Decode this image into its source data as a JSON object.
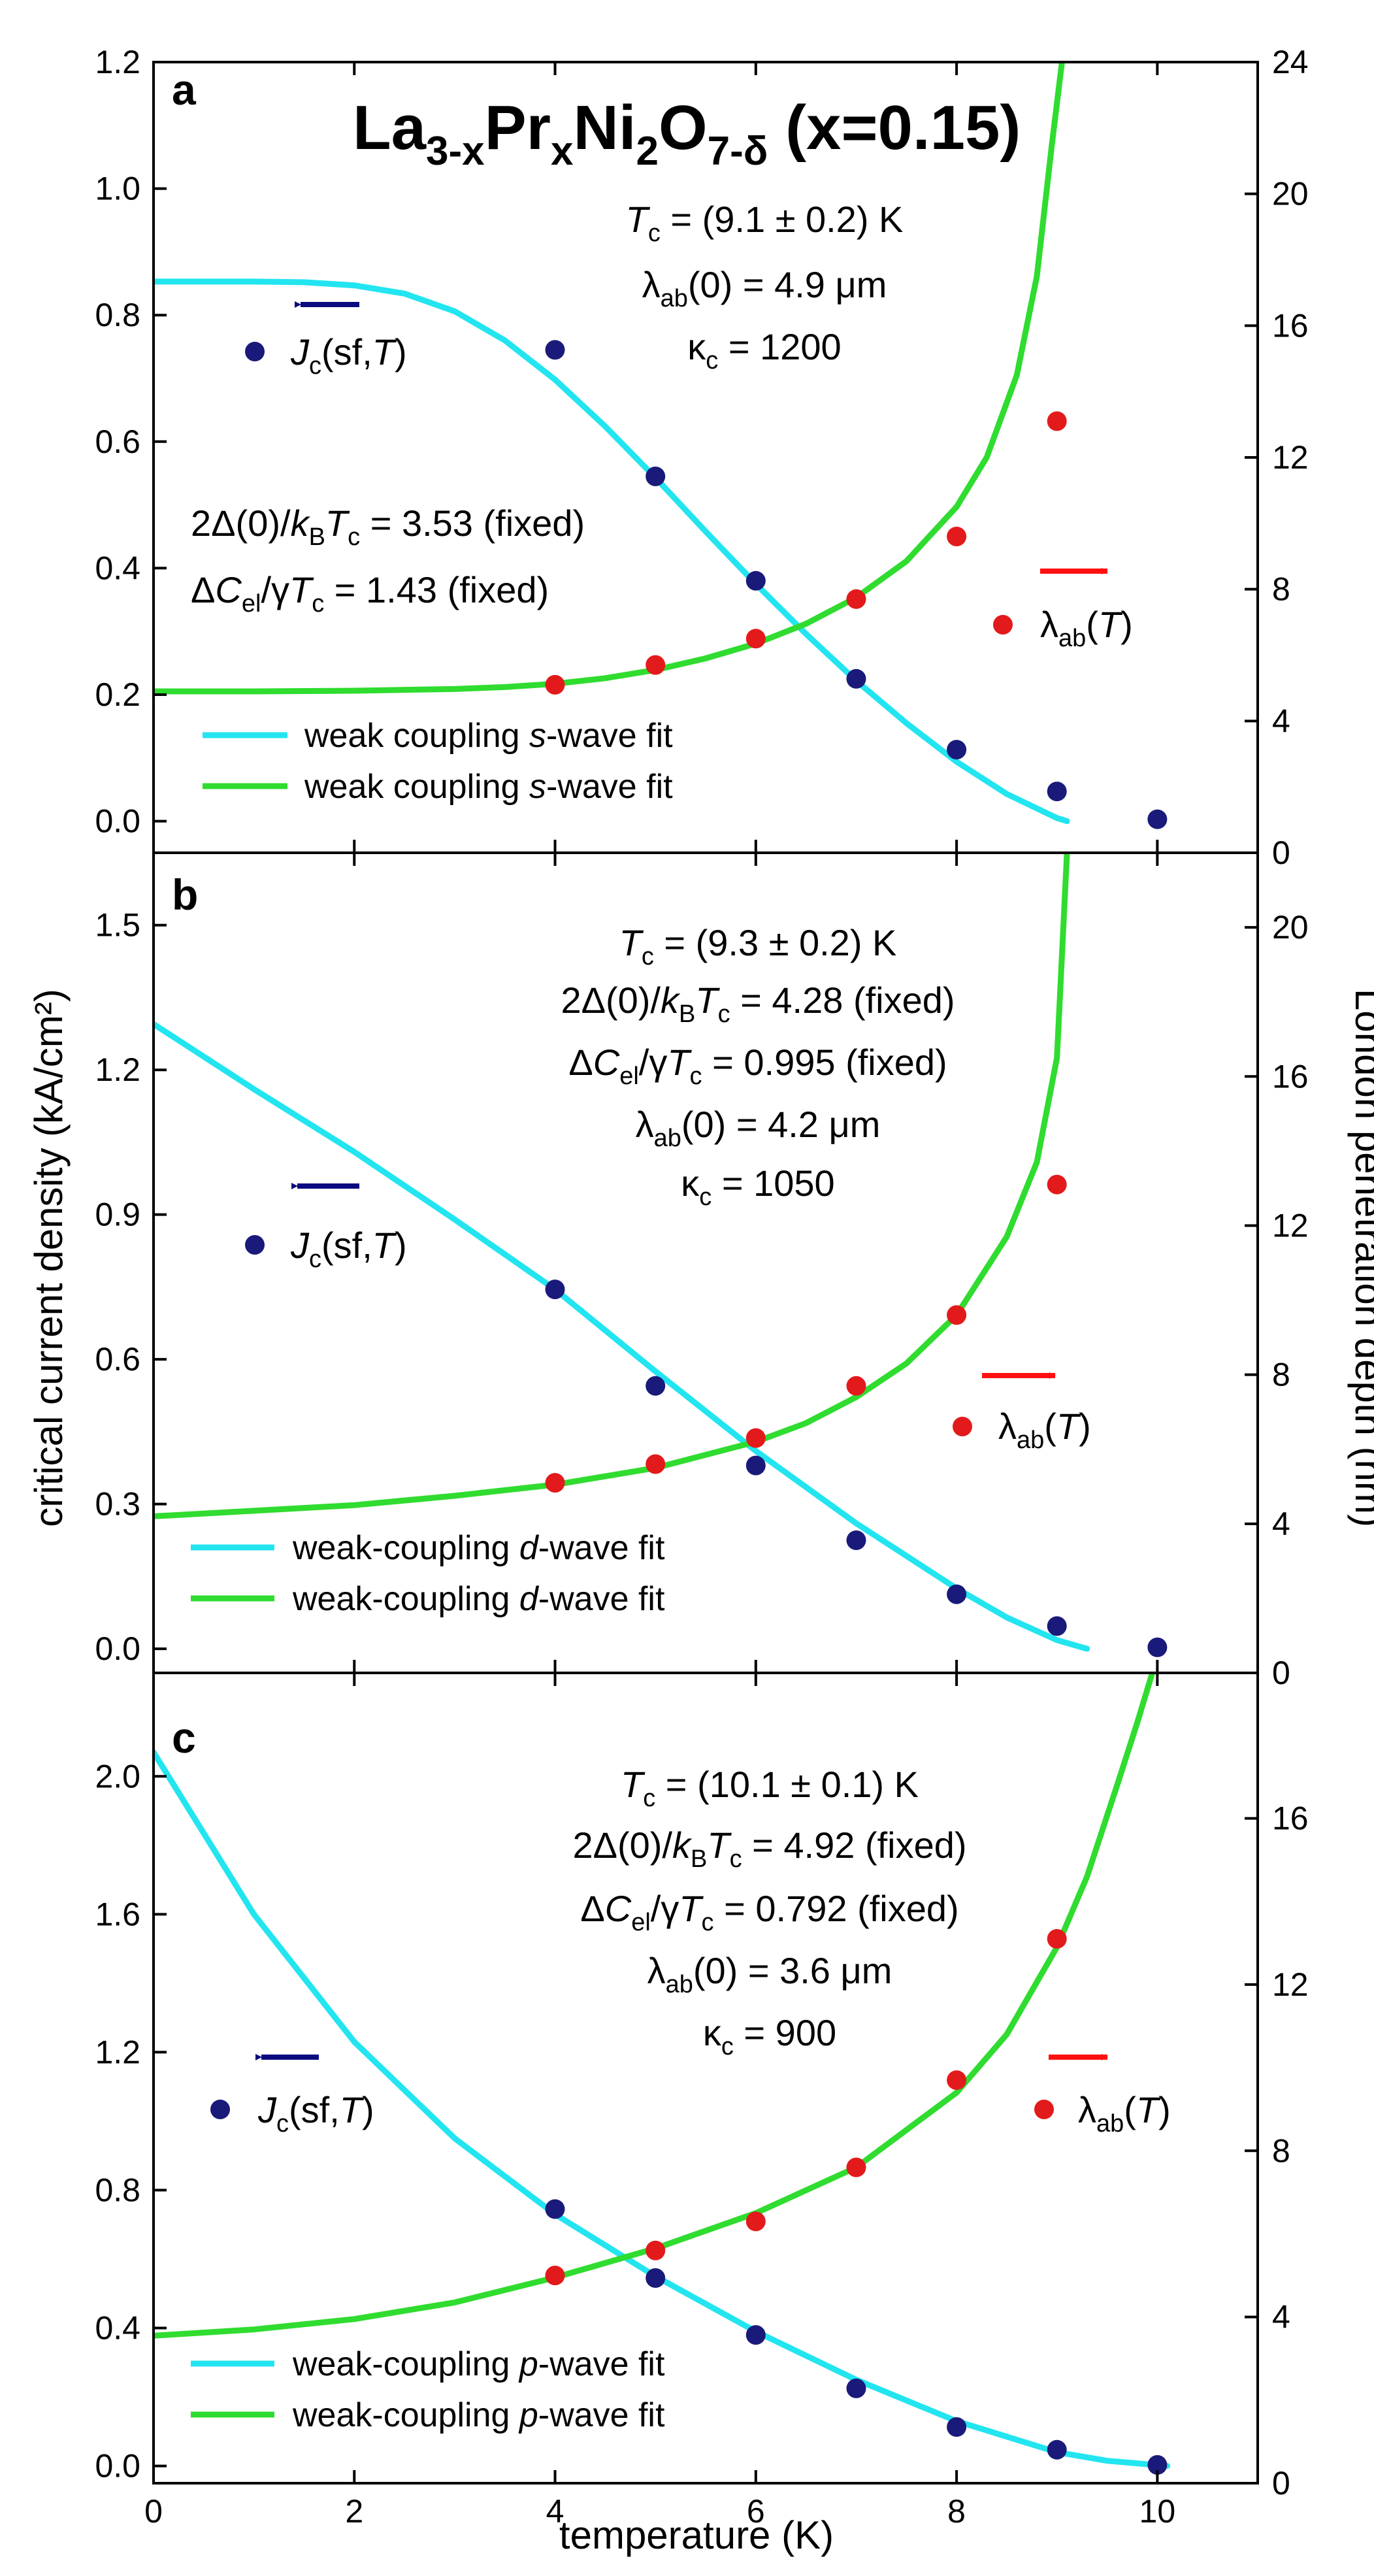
{
  "figure": {
    "title_main": "La",
    "title_sub1": "3-x",
    "title_pr": "Pr",
    "title_sub2": "x",
    "title_ni": "Ni",
    "title_sub3": "2",
    "title_o": "O",
    "title_sub4": "7-δ",
    "title_tail": " (x=0.15)",
    "xlabel": "temperature (K)",
    "ylabel_left": "critical current density (kA/cm²)",
    "ylabel_right": "London penetration depth (nm)",
    "x_ticks": [
      "0",
      "2",
      "4",
      "6",
      "8",
      "10"
    ]
  },
  "panels": [
    {
      "letter": "a",
      "annotations": [
        "T_c = (9.1 ± 0.2) K",
        "λ_ab(0) = 4.9 μm",
        "κ_c = 1200",
        "2Δ(0)/k_B T_c = 3.53 (fixed)",
        "ΔC_el/γT_c = 1.43 (fixed)"
      ],
      "a1": {
        "pre": "T",
        "sub": "c",
        "post": " = (9.1 ± 0.2) K"
      },
      "a2": {
        "pre": "λ",
        "sub": "ab",
        "post": "(0) = 4.9 μm"
      },
      "a3": {
        "pre": "κ",
        "sub": "c",
        "post": " = 1200"
      },
      "a4": {
        "p1": "2Δ(0)/",
        "i1": "k",
        "s1": "B",
        "i2": "T",
        "s2": "c",
        "p2": " = 3.53 (fixed)"
      },
      "a5": {
        "p1": "Δ",
        "i1": "C",
        "s1": "el",
        "p2": "/γ",
        "i2": "T",
        "s2": "c",
        "p3": " = 1.43 (fixed)"
      },
      "jc_label": {
        "i1": "J",
        "s1": "c",
        "p1": "(sf,",
        "i2": "T",
        "p2": ")"
      },
      "lambda_label": {
        "p1": "λ",
        "s1": "ab",
        "p2": "(",
        "i1": "T",
        "p3": ")"
      },
      "legend": [
        {
          "pre": "weak coupling ",
          "ital": "s",
          "post": "-wave fit"
        },
        {
          "pre": "weak coupling ",
          "ital": "s",
          "post": "-wave fit"
        }
      ],
      "left_ticks": [
        "0.0",
        "0.2",
        "0.4",
        "0.6",
        "0.8",
        "1.0",
        "1.2"
      ],
      "right_ticks": [
        "0",
        "4",
        "8",
        "12",
        "16",
        "20",
        "24"
      ]
    },
    {
      "letter": "b",
      "annotations": [
        "T_c = (9.3 ± 0.2) K",
        "2Δ(0)/k_B T_c = 4.28 (fixed)",
        "ΔC_el/γT_c = 0.995 (fixed)",
        "λ_ab(0) = 4.2 μm",
        "κ_c = 1050"
      ],
      "a1": {
        "pre": "T",
        "sub": "c",
        "post": " = (9.3 ± 0.2) K"
      },
      "a2": {
        "p1": "2Δ(0)/",
        "i1": "k",
        "s1": "B",
        "i2": "T",
        "s2": "c",
        "p2": " = 4.28 (fixed)"
      },
      "a3": {
        "p1": "Δ",
        "i1": "C",
        "s1": "el",
        "p2": "/γ",
        "i2": "T",
        "s2": "c",
        "p3": " = 0.995 (fixed)"
      },
      "a4": {
        "pre": "λ",
        "sub": "ab",
        "post": "(0) = 4.2 μm"
      },
      "a5": {
        "pre": "κ",
        "sub": "c",
        "post": " = 1050"
      },
      "jc_label": {
        "i1": "J",
        "s1": "c",
        "p1": "(sf,",
        "i2": "T",
        "p2": ")"
      },
      "lambda_label": {
        "p1": "λ",
        "s1": "ab",
        "p2": "(",
        "i1": "T",
        "p3": ")"
      },
      "legend": [
        {
          "pre": "weak-coupling ",
          "ital": "d",
          "post": "-wave fit"
        },
        {
          "pre": "weak-coupling ",
          "ital": "d",
          "post": "-wave fit"
        }
      ],
      "left_ticks": [
        "0.0",
        "0.3",
        "0.6",
        "0.9",
        "1.2",
        "1.5"
      ],
      "right_ticks": [
        "0",
        "4",
        "8",
        "12",
        "16",
        "20"
      ]
    },
    {
      "letter": "c",
      "annotations": [
        "T_c = (10.1 ± 0.1) K",
        "2Δ(0)/k_B T_c = 4.92 (fixed)",
        "ΔC_el/γT_c = 0.792 (fixed)",
        "λ_ab(0) = 3.6 μm",
        "κ_c = 900"
      ],
      "a1": {
        "pre": "T",
        "sub": "c",
        "post": " = (10.1 ± 0.1) K"
      },
      "a2": {
        "p1": "2Δ(0)/",
        "i1": "k",
        "s1": "B",
        "i2": "T",
        "s2": "c",
        "p2": " = 4.92 (fixed)"
      },
      "a3": {
        "p1": "Δ",
        "i1": "C",
        "s1": "el",
        "p2": "/γ",
        "i2": "T",
        "s2": "c",
        "p3": " = 0.792 (fixed)"
      },
      "a4": {
        "pre": "λ",
        "sub": "ab",
        "post": "(0) = 3.6 μm"
      },
      "a5": {
        "pre": "κ",
        "sub": "c",
        "post": " = 900"
      },
      "jc_label": {
        "i1": "J",
        "s1": "c",
        "p1": "(sf,",
        "i2": "T",
        "p2": ")"
      },
      "lambda_label": {
        "p1": "λ",
        "s1": "ab",
        "p2": "(",
        "i1": "T",
        "p3": ")"
      },
      "legend": [
        {
          "pre": "weak-coupling ",
          "ital": "p",
          "post": "-wave fit"
        },
        {
          "pre": "weak-coupling ",
          "ital": "p",
          "post": "-wave fit"
        }
      ],
      "left_ticks": [
        "0.0",
        "0.4",
        "0.8",
        "1.2",
        "1.6",
        "2.0"
      ],
      "right_ticks": [
        "0",
        "4",
        "8",
        "12",
        "16"
      ]
    }
  ],
  "colors": {
    "jc_points": "#1a1a7a",
    "lambda_points": "#e31a1c",
    "jc_fit": "#22e5f0",
    "lambda_fit": "#2fdc2f",
    "jc_arrow": "#0b0b80",
    "lambda_arrow": "#ff1010"
  },
  "chart_data": [
    {
      "type": "scatter",
      "title": "a",
      "xlabel": "temperature (K)",
      "ylabel": "critical current density (kA/cm²)",
      "y2label": "London penetration depth (nm)",
      "xlim": [
        0,
        11
      ],
      "ylim": [
        -0.05,
        1.2
      ],
      "y2lim": [
        0,
        24
      ],
      "series": [
        {
          "name": "J_c(sf,T)",
          "axis": "left",
          "x": [
            4,
            5,
            6,
            7,
            8,
            9,
            10
          ],
          "y": [
            0.745,
            0.545,
            0.38,
            0.225,
            0.113,
            0.047,
            0.003
          ]
        },
        {
          "name": "λ_ab(T)",
          "axis": "right",
          "x": [
            4,
            5,
            6,
            7,
            8,
            9
          ],
          "y": [
            5.1,
            5.7,
            6.5,
            7.7,
            9.6,
            13.1
          ]
        },
        {
          "name": "weak coupling s-wave fit (J_c)",
          "axis": "left",
          "type": "line",
          "x": [
            0,
            0.5,
            1,
            1.5,
            2,
            2.5,
            3,
            3.5,
            4,
            4.5,
            5,
            5.5,
            6,
            6.5,
            7,
            7.5,
            8,
            8.5,
            9,
            9.1
          ],
          "y": [
            0.853,
            0.853,
            0.853,
            0.852,
            0.847,
            0.834,
            0.806,
            0.76,
            0.698,
            0.624,
            0.543,
            0.458,
            0.375,
            0.296,
            0.222,
            0.155,
            0.094,
            0.043,
            0.005,
            0
          ]
        },
        {
          "name": "weak coupling s-wave fit (λ)",
          "axis": "right",
          "type": "line",
          "x": [
            0,
            1,
            2,
            3,
            3.5,
            4,
            4.5,
            5,
            5.5,
            6,
            6.5,
            7,
            7.5,
            8,
            8.3,
            8.6,
            8.8,
            8.95,
            9.05
          ],
          "y": [
            4.9,
            4.9,
            4.92,
            4.97,
            5.03,
            5.13,
            5.3,
            5.55,
            5.9,
            6.35,
            6.95,
            7.75,
            8.85,
            10.5,
            12.0,
            14.5,
            17.5,
            21.5,
            24
          ]
        }
      ]
    },
    {
      "type": "scatter",
      "title": "b",
      "xlabel": "temperature (K)",
      "ylabel": "critical current density (kA/cm²)",
      "y2label": "London penetration depth (nm)",
      "xlim": [
        0,
        11
      ],
      "ylim": [
        -0.05,
        1.65
      ],
      "y2lim": [
        0,
        22
      ],
      "series": [
        {
          "name": "J_c(sf,T)",
          "axis": "left",
          "x": [
            4,
            5,
            6,
            7,
            8,
            9,
            10
          ],
          "y": [
            0.745,
            0.545,
            0.38,
            0.225,
            0.113,
            0.047,
            0.003
          ]
        },
        {
          "name": "λ_ab(T)",
          "axis": "right",
          "x": [
            4,
            5,
            6,
            7,
            8,
            9
          ],
          "y": [
            5.1,
            5.6,
            6.3,
            7.7,
            9.6,
            13.1
          ]
        },
        {
          "name": "weak-coupling d-wave fit (J_c)",
          "axis": "left",
          "type": "line",
          "x": [
            0,
            1,
            2,
            3,
            4,
            5,
            6,
            7,
            8,
            8.5,
            9,
            9.3
          ],
          "y": [
            1.295,
            1.16,
            1.03,
            0.89,
            0.745,
            0.575,
            0.41,
            0.26,
            0.125,
            0.065,
            0.018,
            0
          ]
        },
        {
          "name": "weak-coupling d-wave fit (λ)",
          "axis": "right",
          "type": "line",
          "x": [
            0,
            1,
            2,
            3,
            4,
            5,
            6,
            6.5,
            7,
            7.5,
            8,
            8.5,
            8.8,
            9.0,
            9.1
          ],
          "y": [
            4.2,
            4.35,
            4.5,
            4.75,
            5.05,
            5.5,
            6.2,
            6.7,
            7.4,
            8.3,
            9.6,
            11.7,
            13.7,
            16.5,
            22
          ]
        }
      ]
    },
    {
      "type": "scatter",
      "title": "c",
      "xlabel": "temperature (K)",
      "ylabel": "critical current density (kA/cm²)",
      "y2label": "London penetration depth (nm)",
      "xlim": [
        0,
        11
      ],
      "ylim": [
        -0.05,
        2.3
      ],
      "y2lim": [
        0,
        19.5
      ],
      "series": [
        {
          "name": "J_c(sf,T)",
          "axis": "left",
          "x": [
            4,
            5,
            6,
            7,
            8,
            9,
            10
          ],
          "y": [
            0.745,
            0.545,
            0.38,
            0.225,
            0.113,
            0.047,
            0.003
          ]
        },
        {
          "name": "λ_ab(T)",
          "axis": "right",
          "x": [
            4,
            5,
            6,
            7,
            8,
            9
          ],
          "y": [
            5.0,
            5.6,
            6.3,
            7.6,
            9.7,
            13.1
          ]
        },
        {
          "name": "weak-coupling p-wave fit (J_c)",
          "axis": "left",
          "type": "line",
          "x": [
            0,
            1,
            2,
            3,
            4,
            5,
            6,
            7,
            8,
            9,
            9.5,
            10.1
          ],
          "y": [
            2.07,
            1.6,
            1.23,
            0.95,
            0.73,
            0.55,
            0.39,
            0.25,
            0.13,
            0.04,
            0.015,
            0
          ]
        },
        {
          "name": "weak-coupling p-wave fit (λ)",
          "axis": "right",
          "type": "line",
          "x": [
            0,
            1,
            2,
            3,
            4,
            5,
            6,
            7,
            8,
            8.5,
            9,
            9.3,
            9.6,
            9.8,
            9.95
          ],
          "y": [
            3.55,
            3.7,
            3.95,
            4.35,
            4.95,
            5.65,
            6.5,
            7.6,
            9.4,
            10.8,
            12.9,
            14.6,
            16.8,
            18.3,
            19.5
          ]
        }
      ]
    }
  ]
}
